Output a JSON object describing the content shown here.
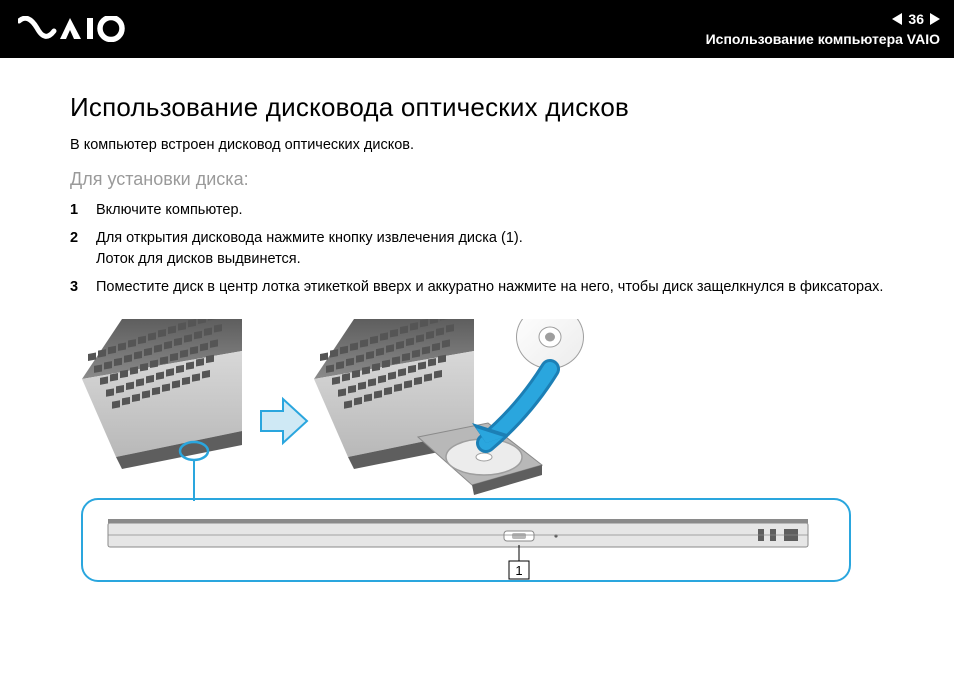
{
  "header": {
    "page_number": "36",
    "breadcrumb": "Использование компьютера VAIO"
  },
  "main": {
    "title": "Использование дисковода оптических дисков",
    "intro": "В компьютер встроен дисковод оптических дисков.",
    "subtitle": "Для установки диска:",
    "steps": [
      {
        "n": "1",
        "text": "Включите компьютер."
      },
      {
        "n": "2",
        "text": "Для открытия дисковода нажмите кнопку извлечения диска (1).\nЛоток для дисков выдвинется."
      },
      {
        "n": "3",
        "text": "Поместите диск в центр лотка этикеткой вверх и аккуратно нажмите на него, чтобы диск защелкнулся в фиксаторах."
      }
    ]
  },
  "diagram": {
    "callout_label": "1",
    "colors": {
      "accent": "#2aa6de",
      "accent_dark": "#1c7fb5",
      "laptop_light": "#d8d8d8",
      "laptop_mid": "#b8b8b8",
      "laptop_dark": "#8a8a8a",
      "laptop_darker": "#5e5e5e",
      "key": "#555555",
      "disc_rim": "#9e9e9e",
      "disc_face": "#ececec",
      "arrow_fill": "#cfe9f5",
      "side_body": "#e6e6e6",
      "side_line": "#8a8a8a"
    },
    "frame": {
      "border_radius": 16
    }
  }
}
